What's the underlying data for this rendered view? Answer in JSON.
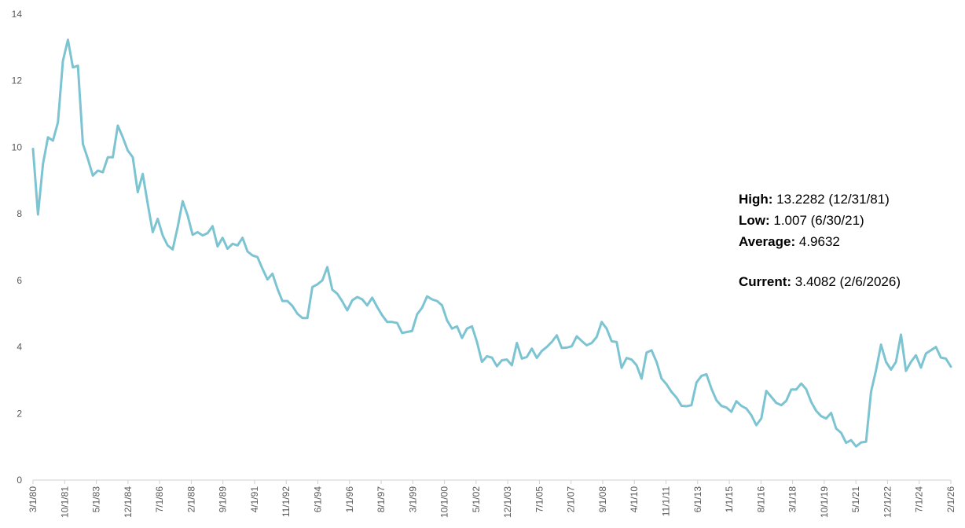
{
  "chart_data": {
    "type": "line",
    "title": "",
    "xlabel": "",
    "ylabel": "",
    "ylim": [
      0,
      14
    ],
    "yticks": [
      0,
      2,
      4,
      6,
      8,
      10,
      12,
      14
    ],
    "grid": false,
    "line_color": "#7cc4d2",
    "xtick_labels": [
      "3/1/80",
      "10/1/81",
      "5/1/83",
      "12/1/84",
      "7/1/86",
      "2/1/88",
      "9/1/89",
      "4/1/91",
      "11/1/92",
      "6/1/94",
      "1/1/96",
      "8/1/97",
      "3/1/99",
      "10/1/00",
      "5/1/02",
      "12/1/03",
      "7/1/05",
      "2/1/07",
      "9/1/08",
      "4/1/10",
      "11/1/11",
      "6/1/13",
      "1/1/15",
      "8/1/16",
      "3/1/18",
      "10/1/19",
      "5/1/21",
      "12/1/22",
      "7/1/24",
      "2/1/26"
    ],
    "series": [
      {
        "values": [
          9.95,
          7.98,
          9.5,
          10.3,
          10.2,
          10.75,
          12.6,
          13.23,
          12.4,
          12.45,
          10.1,
          9.65,
          9.15,
          9.3,
          9.25,
          9.7,
          9.7,
          10.65,
          10.3,
          9.9,
          9.7,
          8.65,
          9.2,
          8.3,
          7.45,
          7.85,
          7.35,
          7.05,
          6.93,
          7.6,
          8.38,
          7.95,
          7.37,
          7.45,
          7.35,
          7.42,
          7.63,
          7.02,
          7.28,
          6.95,
          7.1,
          7.05,
          7.28,
          6.87,
          6.75,
          6.7,
          6.35,
          6.03,
          6.2,
          5.75,
          5.38,
          5.38,
          5.23,
          5.0,
          4.87,
          4.87,
          5.8,
          5.88,
          6.0,
          6.4,
          5.72,
          5.6,
          5.37,
          5.1,
          5.4,
          5.5,
          5.43,
          5.25,
          5.48,
          5.2,
          4.95,
          4.75,
          4.75,
          4.72,
          4.42,
          4.45,
          4.48,
          4.98,
          5.18,
          5.52,
          5.43,
          5.38,
          5.25,
          4.8,
          4.55,
          4.62,
          4.27,
          4.55,
          4.62,
          4.15,
          3.55,
          3.72,
          3.68,
          3.42,
          3.6,
          3.62,
          3.45,
          4.12,
          3.65,
          3.7,
          3.95,
          3.67,
          3.88,
          4.0,
          4.15,
          4.35,
          3.97,
          3.98,
          4.02,
          4.32,
          4.18,
          4.05,
          4.12,
          4.3,
          4.75,
          4.55,
          4.17,
          4.15,
          3.37,
          3.67,
          3.62,
          3.45,
          3.05,
          3.83,
          3.9,
          3.55,
          3.05,
          2.88,
          2.65,
          2.48,
          2.23,
          2.22,
          2.25,
          2.93,
          3.13,
          3.18,
          2.75,
          2.4,
          2.23,
          2.18,
          2.05,
          2.37,
          2.23,
          2.15,
          1.95,
          1.65,
          1.85,
          2.68,
          2.5,
          2.32,
          2.25,
          2.38,
          2.72,
          2.72,
          2.9,
          2.73,
          2.35,
          2.08,
          1.92,
          1.85,
          2.02,
          1.55,
          1.42,
          1.12,
          1.2,
          1.01,
          1.13,
          1.15,
          2.65,
          3.3,
          4.07,
          3.55,
          3.32,
          3.55,
          4.37,
          3.28,
          3.55,
          3.75,
          3.38,
          3.8,
          3.9,
          4.0,
          3.68,
          3.65,
          3.41
        ]
      }
    ]
  },
  "stats": {
    "high_label": "High:",
    "high_value": " 13.2282 (12/31/81)",
    "low_label": "Low:",
    "low_value": " 1.007 (6/30/21)",
    "avg_label": "Average:",
    "avg_value": " 4.9632",
    "current_label": "Current:",
    "current_value": " 3.4082 (2/6/2026)"
  }
}
